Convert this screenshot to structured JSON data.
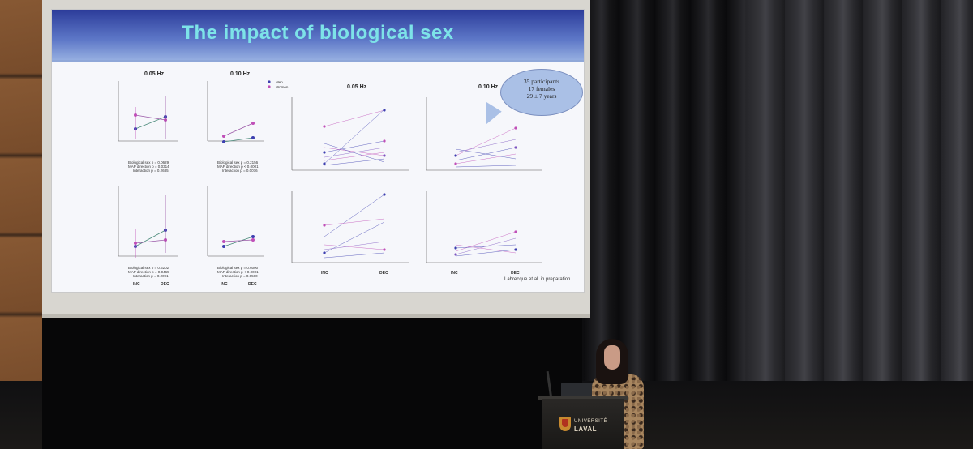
{
  "slide": {
    "title": "The impact of biological sex",
    "panels": [
      {
        "name": "panel-a",
        "label": "0.05 Hz"
      },
      {
        "name": "panel-b",
        "label": "0.10 Hz"
      },
      {
        "name": "panel-c",
        "label": "0.05 Hz"
      },
      {
        "name": "panel-d",
        "label": "0.10 Hz"
      }
    ],
    "legend": {
      "men": "Men",
      "women": "Women"
    },
    "x_categories": [
      "INC",
      "DEC"
    ],
    "stats": {
      "top_left": [
        "Biological sex p = 0.0629",
        "MAP direction p = 0.0314",
        "Interaction p = 0.2685"
      ],
      "top_mid": [
        "Biological sex p = 0.2156",
        "MAP direction p < 0.0001",
        "Interaction p = 0.0076"
      ],
      "bottom_left": [
        "Biological sex p = 0.6202",
        "MAP direction p = 0.0465",
        "Interaction p = 0.2091"
      ],
      "bottom_mid": [
        "Biological sex p = 0.6000",
        "MAP direction p < 0.0001",
        "Interaction p = 0.0580"
      ]
    },
    "bubble_lines": [
      "35 participants",
      "17 females",
      "29 ± 7 years"
    ],
    "citation": "Labrecque et al. in preparation"
  },
  "podium": {
    "logo_line1": "UNIVERSITÉ",
    "logo_line2": "LAVAL"
  },
  "colors": {
    "men": "#3d3fb0",
    "women": "#c04fb8",
    "title": "#7de3e8"
  }
}
